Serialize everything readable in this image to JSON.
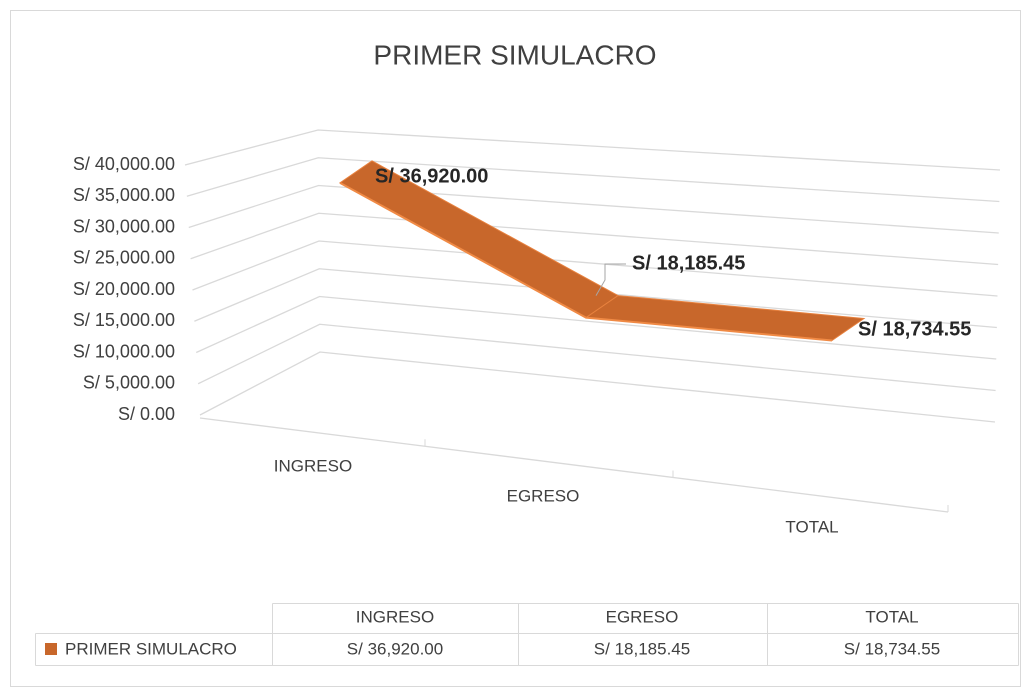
{
  "chart_data": {
    "type": "line",
    "title": "PRIMER SIMULACRO",
    "categories": [
      "INGRESO",
      "EGRESO",
      "TOTAL"
    ],
    "series": [
      {
        "name": "PRIMER SIMULACRO",
        "color": "#c8672b",
        "values": [
          36920,
          18185.45,
          18734.55
        ],
        "value_labels": [
          "S/ 36,920.00",
          "S/ 18,185.45",
          "S/ 18,734.55"
        ]
      }
    ],
    "ylim": [
      0,
      40000
    ],
    "yticks": [
      {
        "value": 0,
        "label": "S/ 0.00"
      },
      {
        "value": 5000,
        "label": "S/ 5,000.00"
      },
      {
        "value": 10000,
        "label": "S/ 10,000.00"
      },
      {
        "value": 15000,
        "label": "S/ 15,000.00"
      },
      {
        "value": 20000,
        "label": "S/ 20,000.00"
      },
      {
        "value": 25000,
        "label": "S/ 25,000.00"
      },
      {
        "value": 30000,
        "label": "S/ 30,000.00"
      },
      {
        "value": 35000,
        "label": "S/ 35,000.00"
      },
      {
        "value": 40000,
        "label": "S/ 40,000.00"
      }
    ],
    "grid": true,
    "data_table": true
  }
}
